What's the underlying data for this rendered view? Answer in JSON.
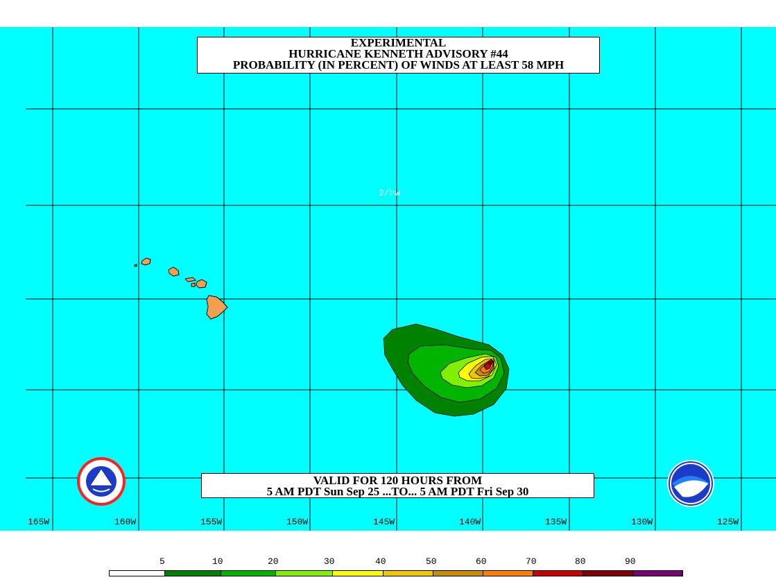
{
  "title": {
    "line1": "EXPERIMENTAL",
    "line2": "HURRICANE KENNETH ADVISORY #44",
    "line3": "PROBABILITY (IN PERCENT) OF WINDS AT LEAST 58 MPH"
  },
  "valid": {
    "line1": "VALID FOR 120 HOURS FROM",
    "line2": "5 AM PDT Sun Sep 25 ...TO... 5 AM PDT Fri Sep 30"
  },
  "map_note": "2/hw",
  "longitude_labels": [
    "165W",
    "160W",
    "155W",
    "150W",
    "145W",
    "140W",
    "135W",
    "130W",
    "125W"
  ],
  "legend": {
    "ticks": [
      "5",
      "10",
      "20",
      "30",
      "40",
      "50",
      "60",
      "70",
      "80",
      "90"
    ],
    "colors": [
      "#ffffff",
      "#008200",
      "#00b400",
      "#80f000",
      "#ffff00",
      "#f0c800",
      "#c88c00",
      "#ff8000",
      "#c80000",
      "#820000",
      "#780078"
    ]
  },
  "colors": {
    "ocean": "#00ffff",
    "land": "#f0a050",
    "grid": "#000000"
  },
  "logos": {
    "left": "NOAA National Weather Service seal",
    "right": "NOAA logo"
  }
}
